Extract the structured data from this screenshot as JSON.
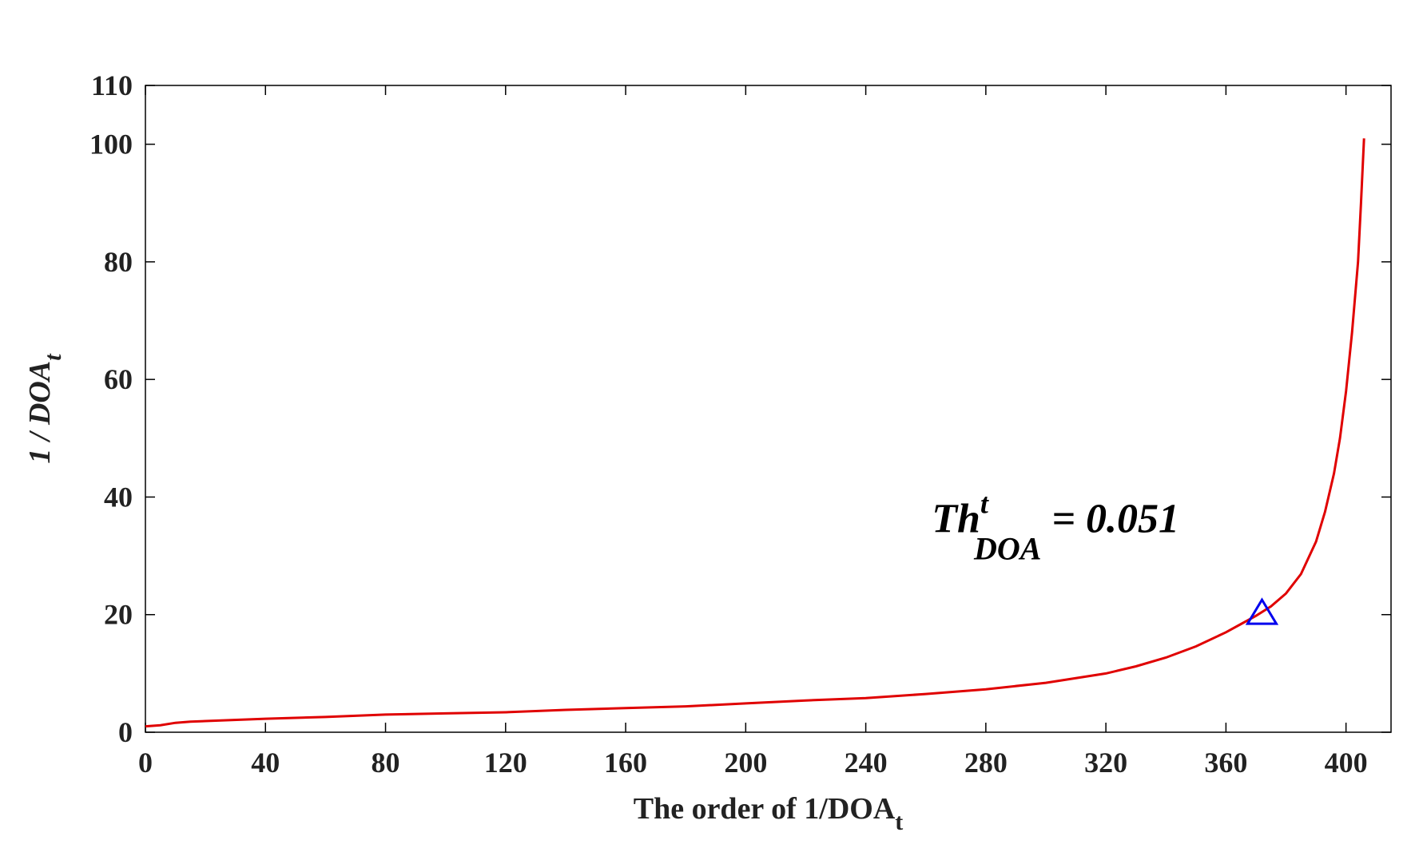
{
  "chart_data": {
    "type": "line",
    "title": "",
    "xlabel": {
      "main": "The order of 1/DOA",
      "sub": "t"
    },
    "ylabel": {
      "main": "1 / DOA",
      "sub": "t"
    },
    "xlim": [
      0,
      415
    ],
    "ylim": [
      0,
      110
    ],
    "xticks": [
      0,
      40,
      80,
      120,
      160,
      200,
      240,
      280,
      320,
      360,
      400
    ],
    "yticks": [
      0,
      20,
      40,
      60,
      80,
      100,
      110
    ],
    "grid": false,
    "line_color": "#e00000",
    "marker_color": "#0000ee",
    "series": [
      {
        "x": [
          0,
          5,
          10,
          15,
          20,
          40,
          60,
          80,
          100,
          120,
          140,
          160,
          180,
          200,
          220,
          240,
          260,
          280,
          300,
          320,
          330,
          340,
          350,
          360,
          365,
          370,
          375,
          380,
          385,
          390,
          393,
          396,
          398,
          400,
          402,
          404,
          405,
          406
        ],
        "y": [
          1.0,
          1.2,
          1.6,
          1.8,
          1.9,
          2.3,
          2.6,
          3.0,
          3.2,
          3.4,
          3.8,
          4.1,
          4.4,
          4.9,
          5.4,
          5.8,
          6.5,
          7.3,
          8.4,
          10.0,
          11.2,
          12.7,
          14.6,
          17.0,
          18.4,
          19.8,
          21.4,
          23.6,
          26.9,
          32.4,
          37.5,
          44.0,
          50.0,
          58.0,
          68.0,
          80.0,
          90.0,
          101.0
        ]
      }
    ],
    "marker": {
      "shape": "triangle",
      "x": 372,
      "y": 20
    },
    "annotation": {
      "main": "Th",
      "sup": "t",
      "sub": "DOA",
      "rest": " = 0.051",
      "x": 262,
      "y": 34
    }
  }
}
